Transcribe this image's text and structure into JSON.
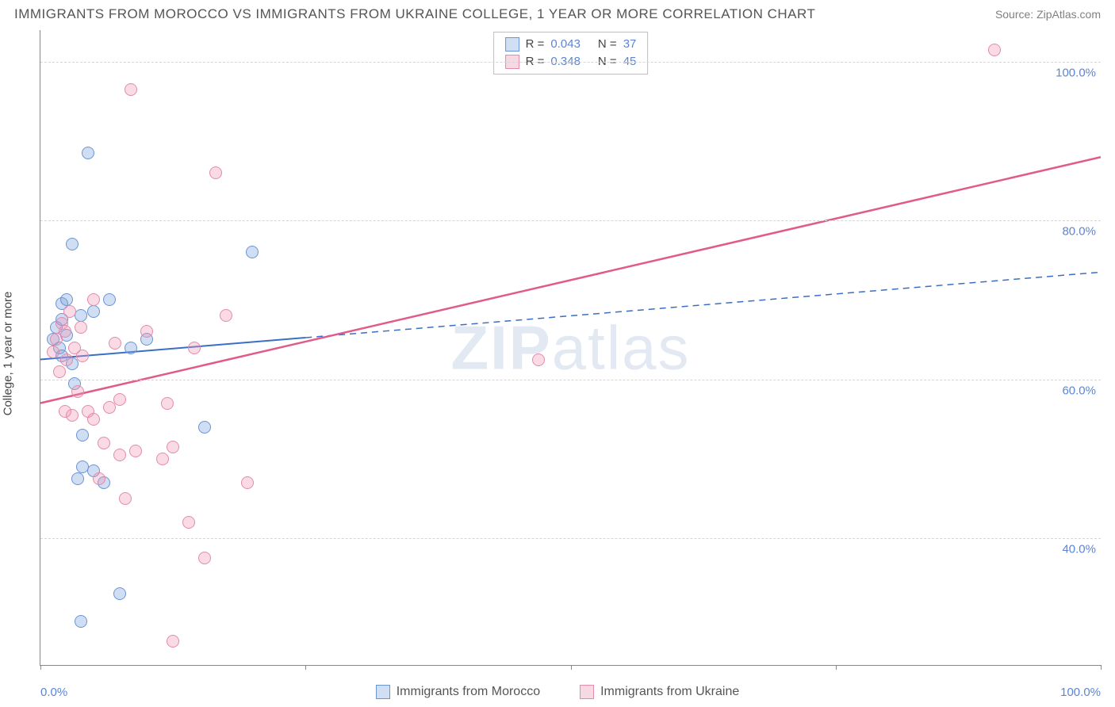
{
  "title": "IMMIGRANTS FROM MOROCCO VS IMMIGRANTS FROM UKRAINE COLLEGE, 1 YEAR OR MORE CORRELATION CHART",
  "source": "Source: ZipAtlas.com",
  "ylabel": "College, 1 year or more",
  "watermark_a": "ZIP",
  "watermark_b": "atlas",
  "chart": {
    "type": "scatter",
    "background_color": "#ffffff",
    "grid_color": "#d5d5d5",
    "axis_color": "#888888",
    "xlim": [
      0,
      100
    ],
    "ylim": [
      24,
      104
    ],
    "xticks": [
      0,
      25,
      50,
      75,
      100
    ],
    "xlabels": {
      "0": "0.0%",
      "100": "100.0%"
    },
    "yticks": [
      40,
      60,
      80,
      100
    ],
    "ylabels": {
      "40": "40.0%",
      "60": "60.0%",
      "80": "80.0%",
      "100": "100.0%"
    },
    "dot_radius": 8,
    "dot_border_width": 1.5,
    "series": [
      {
        "name": "Immigrants from Morocco",
        "fill": "rgba(120,160,220,0.35)",
        "stroke": "#6a94d4",
        "swatch_fill": "#cfe0f4",
        "swatch_stroke": "#6a94d4",
        "reg_color": "#3a6fc4",
        "reg_width": 2,
        "reg_solid_until": 25,
        "R": "0.043",
        "N": "37",
        "reg_start_y": 62.5,
        "reg_end_y": 73.5,
        "points": [
          [
            1.2,
            65.0
          ],
          [
            1.5,
            66.5
          ],
          [
            1.8,
            64.0
          ],
          [
            2.0,
            67.5
          ],
          [
            2.0,
            69.5
          ],
          [
            2.0,
            63.0
          ],
          [
            2.5,
            65.5
          ],
          [
            2.5,
            70.0
          ],
          [
            3.0,
            62.0
          ],
          [
            3.0,
            77.0
          ],
          [
            3.2,
            59.5
          ],
          [
            3.5,
            47.5
          ],
          [
            3.8,
            68.0
          ],
          [
            3.8,
            29.5
          ],
          [
            4.0,
            53.0
          ],
          [
            4.0,
            49.0
          ],
          [
            4.5,
            88.5
          ],
          [
            5.0,
            48.5
          ],
          [
            5.0,
            68.5
          ],
          [
            6.0,
            47.0
          ],
          [
            6.5,
            70.0
          ],
          [
            7.5,
            33.0
          ],
          [
            8.5,
            64.0
          ],
          [
            10.0,
            65.0
          ],
          [
            15.5,
            54.0
          ],
          [
            20.0,
            76.0
          ]
        ]
      },
      {
        "name": "Immigrants from Ukraine",
        "fill": "rgba(240,150,180,0.35)",
        "stroke": "#e38bab",
        "swatch_fill": "#f6d9e3",
        "swatch_stroke": "#e38bab",
        "reg_color": "#e05a8a",
        "reg_width": 2.5,
        "reg_solid_until": 100,
        "R": "0.348",
        "N": "45",
        "reg_start_y": 57.0,
        "reg_end_y": 88.0,
        "points": [
          [
            1.2,
            63.5
          ],
          [
            1.5,
            65.0
          ],
          [
            1.8,
            61.0
          ],
          [
            2.0,
            67.0
          ],
          [
            2.3,
            66.0
          ],
          [
            2.3,
            56.0
          ],
          [
            2.5,
            62.5
          ],
          [
            2.8,
            68.5
          ],
          [
            3.0,
            55.5
          ],
          [
            3.2,
            64.0
          ],
          [
            3.5,
            58.5
          ],
          [
            3.8,
            66.5
          ],
          [
            4.0,
            63.0
          ],
          [
            4.5,
            56.0
          ],
          [
            5.0,
            70.0
          ],
          [
            5.0,
            55.0
          ],
          [
            5.5,
            47.5
          ],
          [
            6.0,
            52.0
          ],
          [
            6.5,
            56.5
          ],
          [
            7.0,
            64.5
          ],
          [
            7.5,
            50.5
          ],
          [
            7.5,
            57.5
          ],
          [
            8.0,
            45.0
          ],
          [
            8.5,
            96.5
          ],
          [
            9.0,
            51.0
          ],
          [
            10.0,
            66.0
          ],
          [
            11.5,
            50.0
          ],
          [
            12.0,
            57.0
          ],
          [
            12.5,
            51.5
          ],
          [
            12.5,
            27.0
          ],
          [
            14.0,
            42.0
          ],
          [
            14.5,
            64.0
          ],
          [
            15.5,
            37.5
          ],
          [
            16.5,
            86.0
          ],
          [
            17.5,
            68.0
          ],
          [
            19.5,
            47.0
          ],
          [
            47.0,
            62.5
          ],
          [
            90.0,
            101.5
          ]
        ]
      }
    ]
  },
  "bottom_legend": [
    {
      "label": "Immigrants from Morocco",
      "fill": "#cfe0f4",
      "stroke": "#6a94d4"
    },
    {
      "label": "Immigrants from Ukraine",
      "fill": "#f6d9e3",
      "stroke": "#e38bab"
    }
  ]
}
